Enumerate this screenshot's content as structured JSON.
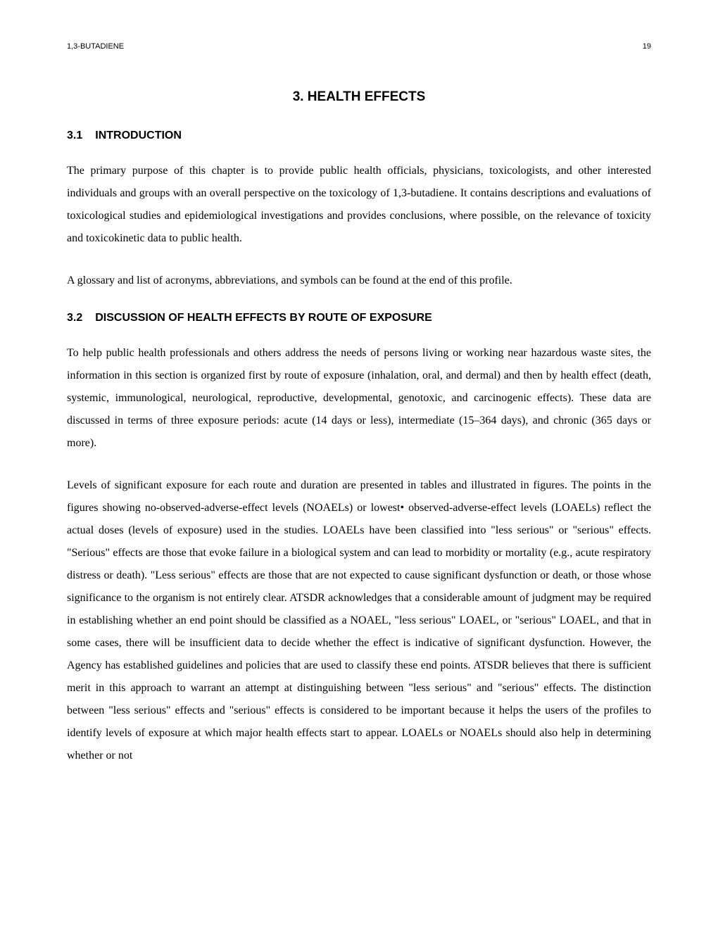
{
  "header": {
    "doc_title": "1,3-BUTADIENE",
    "page_number": "19"
  },
  "chapter": {
    "title": "3.  HEALTH EFFECTS"
  },
  "sections": {
    "s1": {
      "number": "3.1",
      "title": "INTRODUCTION",
      "para1": "The primary purpose of this chapter is to provide public health officials, physicians, toxicologists, and other interested individuals and groups with an overall perspective on the toxicology of 1,3-butadiene.  It contains descriptions and evaluations of toxicological studies and epidemiological investigations and provides conclusions, where possible, on the relevance of toxicity and toxicokinetic data to public health.",
      "para2": "A glossary and list of acronyms, abbreviations, and symbols can be found at the end of this profile."
    },
    "s2": {
      "number": "3.2",
      "title": "DISCUSSION OF HEALTH EFFECTS BY ROUTE OF EXPOSURE",
      "para1": "To help public health professionals and others address the needs of persons living or working near hazardous waste sites, the information in this section is organized first by route of exposure (inhalation, oral, and dermal) and then by health effect (death, systemic, immunological, neurological, reproductive, developmental, genotoxic, and carcinogenic effects).  These data are discussed in terms of three exposure periods:  acute (14 days or less), intermediate (15–364 days), and chronic (365 days or more).",
      "para2": "Levels of significant exposure for each route and duration are presented in tables and illustrated in figures.  The points in the figures showing no-observed-adverse-effect levels (NOAELs) or lowest• observed-adverse-effect levels (LOAELs) reflect the actual doses (levels of exposure) used in the studies.  LOAELs have been classified into \"less serious\" or \"serious\" effects.  \"Serious\" effects are those that evoke failure in a biological system and can lead to morbidity or mortality (e.g., acute respiratory distress or death).  \"Less serious\" effects are those that are not expected to cause significant dysfunction or death, or those whose significance to the organism is not entirely clear.  ATSDR acknowledges that a considerable amount of judgment may be required in establishing whether an end point should be classified as a NOAEL, \"less serious\" LOAEL, or \"serious\" LOAEL, and that in some cases, there will be insufficient data to decide whether the effect is indicative of significant dysfunction.  However, the Agency has established guidelines and policies that are used to classify these end points.  ATSDR believes that there is sufficient merit in this approach to warrant an attempt at distinguishing between \"less serious\" and \"serious\" effects.  The distinction between \"less serious\" effects and \"serious\" effects is considered to be important because it helps the users of the profiles to identify levels of exposure at which major health effects start to appear.  LOAELs or NOAELs should also help in determining whether or not"
    }
  }
}
